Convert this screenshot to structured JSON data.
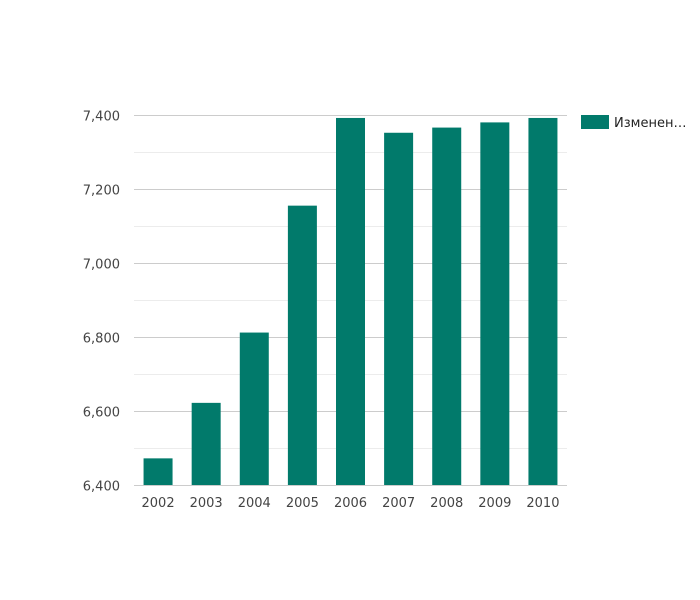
{
  "chart_data": {
    "type": "bar",
    "categories": [
      "2002",
      "2003",
      "2004",
      "2005",
      "2006",
      "2007",
      "2008",
      "2009",
      "2010"
    ],
    "series": [
      {
        "name": "Изменен…",
        "values": [
          6472,
          6622,
          6812,
          7155,
          7392,
          7352,
          7366,
          7380,
          7392
        ],
        "color": "#017a6b"
      }
    ],
    "ylim": [
      6400,
      7400
    ],
    "yticks": [
      6400,
      6600,
      6800,
      7000,
      7200,
      7400
    ],
    "ytick_labels": [
      "6,400",
      "6,600",
      "6,800",
      "7,000",
      "7,200",
      "7,400"
    ],
    "title": "",
    "xlabel": "",
    "ylabel": "",
    "grid": true,
    "legend_position": "right"
  }
}
